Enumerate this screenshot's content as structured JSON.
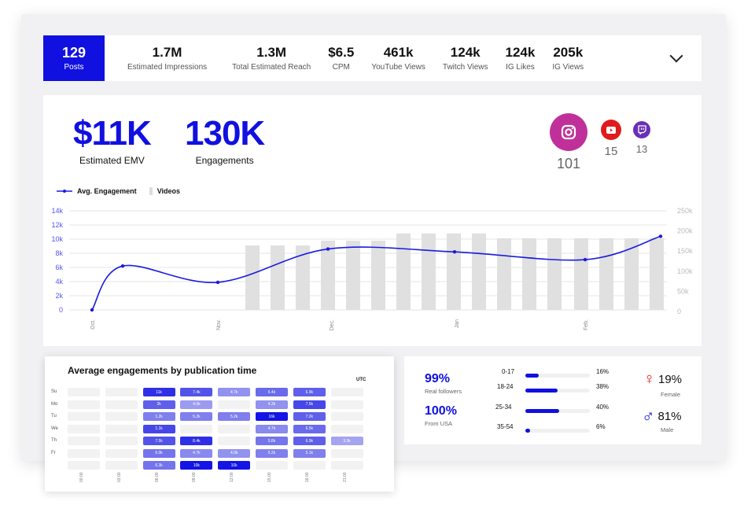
{
  "topbar": {
    "posts": {
      "value": "129",
      "label": "Posts"
    },
    "stats": [
      {
        "value": "1.7M",
        "label": "Estimated Impressions"
      },
      {
        "value": "1.3M",
        "label": "Total Estimated Reach"
      },
      {
        "value": "$6.5",
        "label": "CPM"
      },
      {
        "value": "461k",
        "label": "YouTube Views"
      },
      {
        "value": "124k",
        "label": "Twitch Views"
      },
      {
        "value": "124k",
        "label": "IG Likes"
      },
      {
        "value": "205k",
        "label": "IG Views"
      }
    ],
    "expand_icon": "chevron-down-icon"
  },
  "kpis": [
    {
      "value": "$11K",
      "label": "Estimated EMV"
    },
    {
      "value": "130K",
      "label": "Engagements"
    }
  ],
  "platforms": [
    {
      "name": "instagram",
      "count": "101",
      "color": "#c0309a"
    },
    {
      "name": "youtube",
      "count": "15",
      "color": "#e01b1b"
    },
    {
      "name": "twitch",
      "count": "13",
      "color": "#6a2fb8"
    }
  ],
  "chart_data": {
    "type": "bar+line",
    "legend": [
      "Avg. Engagement",
      "Videos"
    ],
    "legend_position": "top-left",
    "x_ticks": [
      "Oct.",
      "Nov.",
      "Dec.",
      "Jan",
      "Feb."
    ],
    "y_left": {
      "ticks": [
        "0",
        "2k",
        "4k",
        "6k",
        "8k",
        "10k",
        "12k",
        "14k"
      ],
      "range": [
        0,
        14000
      ],
      "color": "#5555ee"
    },
    "y_right": {
      "ticks": [
        "0",
        "50k",
        "100k",
        "150k",
        "200k",
        "250k"
      ],
      "range": [
        0,
        250000
      ]
    },
    "line": {
      "name": "Avg. Engagement",
      "color": "#1a1ae0",
      "points": [
        [
          "Oct.",
          0
        ],
        [
          "mid-Oct.",
          6200
        ],
        [
          "Nov.",
          3900
        ],
        [
          "Dec.",
          8600
        ],
        [
          "Jan",
          8200
        ],
        [
          "Feb.",
          7100
        ],
        [
          "late Feb.",
          10400
        ]
      ]
    },
    "bars": {
      "name": "Videos",
      "color": "#e0e0e0",
      "values": [
        160000,
        160000,
        160000,
        172000,
        172000,
        172000,
        190000,
        190000,
        190000,
        190000,
        178000,
        178000,
        178000,
        178000,
        178000,
        178000,
        178000
      ]
    },
    "grid": true
  },
  "heatmap": {
    "title": "Average engagements by publication time",
    "timezone": "UTC",
    "rows": [
      "Su",
      "Mo",
      "Tu",
      "We",
      "Th",
      "Fr",
      ""
    ],
    "cols": [
      "00:00",
      "03:00",
      "06:00",
      "09:00",
      "12:00",
      "15:00",
      "18:00",
      "21:00"
    ],
    "cells": [
      [
        null,
        null,
        "11k",
        "7.4k",
        "4.7k",
        "6.4k",
        "6.9k",
        null
      ],
      [
        null,
        null,
        "2k",
        "4.0k",
        null,
        "4.3k",
        "7.5k",
        null
      ],
      [
        null,
        null,
        "1.2k",
        "5.2k",
        "5.2k",
        "16k",
        "7.2k",
        null
      ],
      [
        null,
        null,
        "1.1k",
        null,
        null,
        "4.7k",
        "6.5k",
        null
      ],
      [
        null,
        null,
        "7.5k",
        "8.4k",
        null,
        "5.8k",
        "6.9k",
        "3.3k"
      ],
      [
        null,
        null,
        "6.0k",
        "4.7k",
        "4.0k",
        "5.2k",
        "5.1k",
        null
      ],
      [
        null,
        null,
        "6.3k",
        "10k",
        "10k",
        null,
        null,
        null
      ]
    ],
    "intensity": [
      [
        0,
        0,
        0.9,
        0.75,
        0.45,
        0.65,
        0.7,
        0
      ],
      [
        0,
        0,
        0.7,
        0.4,
        0,
        0.45,
        0.8,
        0
      ],
      [
        0,
        0,
        0.55,
        0.55,
        0.55,
        1,
        0.7,
        0
      ],
      [
        0,
        0,
        0.8,
        0,
        0,
        0.5,
        0.65,
        0
      ],
      [
        0,
        0,
        0.75,
        0.9,
        0,
        0.6,
        0.7,
        0.35
      ],
      [
        0,
        0,
        0.6,
        0.5,
        0.45,
        0.55,
        0.55,
        0
      ],
      [
        0,
        0,
        0.6,
        1,
        1,
        0,
        0,
        0
      ]
    ]
  },
  "audience": {
    "real": {
      "value": "99%",
      "label": "Real followers"
    },
    "country": {
      "value": "100%",
      "label": "From USA"
    },
    "ages": [
      {
        "range": "0-17",
        "pct": "16%",
        "frac": 0.16
      },
      {
        "range": "18-24",
        "pct": "38%",
        "frac": 0.38
      },
      {
        "range": "25-34",
        "pct": "40%",
        "frac": 0.4
      },
      {
        "range": "35-54",
        "pct": "6%",
        "frac": 0.06
      }
    ],
    "female": {
      "value": "19%",
      "label": "Female",
      "color": "#e02020"
    },
    "male": {
      "value": "81%",
      "label": "Male",
      "color": "#1010e0"
    }
  }
}
